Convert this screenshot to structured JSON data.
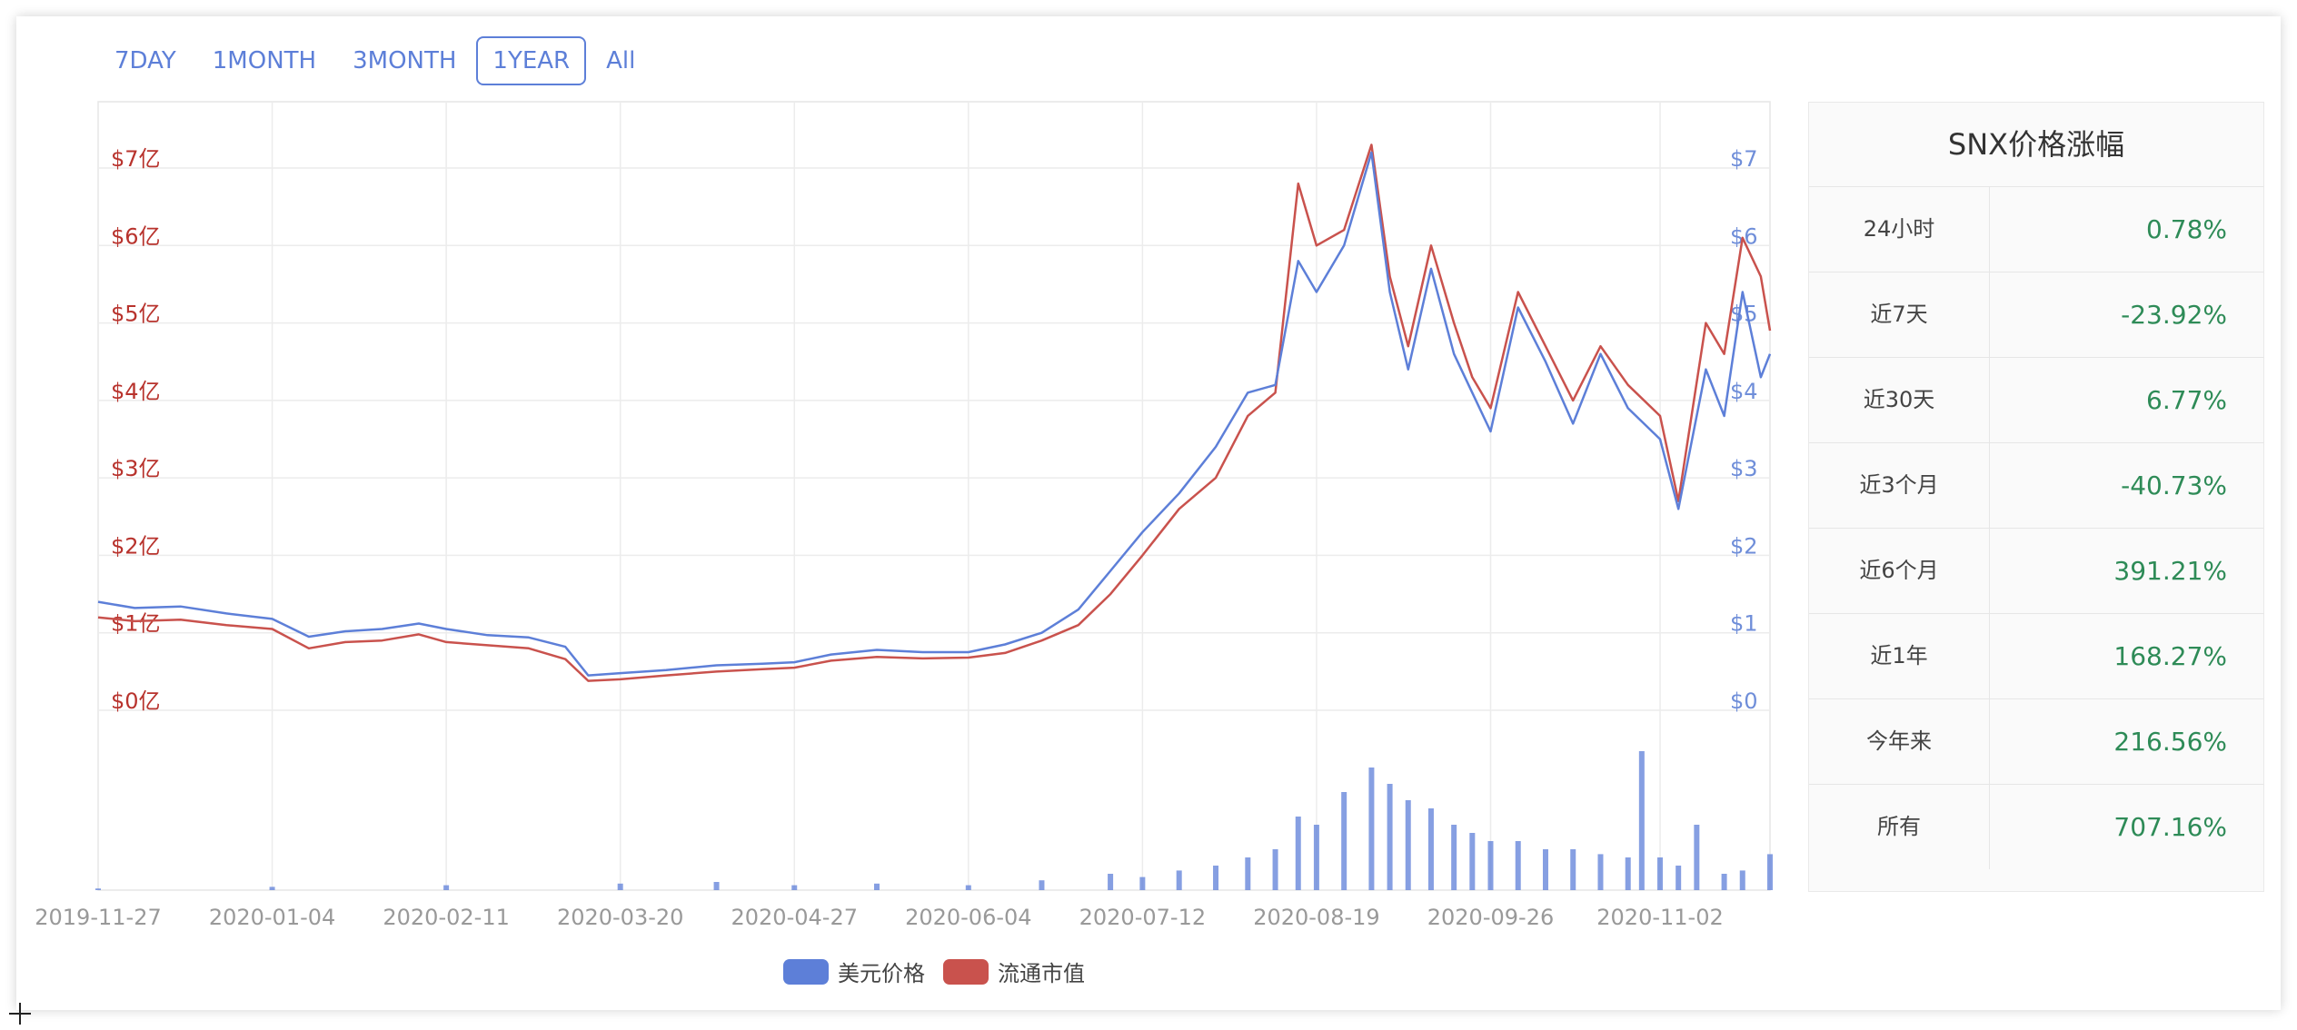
{
  "range_buttons": [
    {
      "label": "7DAY",
      "active": false
    },
    {
      "label": "1MONTH",
      "active": false
    },
    {
      "label": "3MONTH",
      "active": false
    },
    {
      "label": "1YEAR",
      "active": true
    },
    {
      "label": "All",
      "active": false
    }
  ],
  "colors": {
    "price": "#5d7fd8",
    "market_cap": "#c9524d",
    "positive": "#2e8b57",
    "range_accent": "#5d7fd8"
  },
  "legend": [
    {
      "label": "美元价格",
      "color": "#5d7fd8"
    },
    {
      "label": "流通市值",
      "color": "#c9524d"
    }
  ],
  "change_panel": {
    "title": "SNX价格涨幅",
    "rows": [
      {
        "label": "24小时",
        "value": "0.78%"
      },
      {
        "label": "近7天",
        "value": "-23.92%"
      },
      {
        "label": "近30天",
        "value": "6.77%"
      },
      {
        "label": "近3个月",
        "value": "-40.73%"
      },
      {
        "label": "近6个月",
        "value": "391.21%"
      },
      {
        "label": "近1年",
        "value": "168.27%"
      },
      {
        "label": "今年来",
        "value": "216.56%"
      },
      {
        "label": "所有",
        "value": "707.16%"
      }
    ]
  },
  "chart_data": {
    "type": "line",
    "left_axis": {
      "ticks": [
        "$0亿",
        "$1亿",
        "$2亿",
        "$3亿",
        "$4亿",
        "$5亿",
        "$6亿",
        "$7亿"
      ],
      "range": [
        0,
        7
      ],
      "unit": "亿美元"
    },
    "right_axis": {
      "ticks": [
        "$0",
        "$1",
        "$2",
        "$3",
        "$4",
        "$5",
        "$6",
        "$7"
      ],
      "range": [
        0,
        7
      ],
      "unit": "USD"
    },
    "x_ticks": [
      "2019-11-27",
      "2020-01-04",
      "2020-02-11",
      "2020-03-20",
      "2020-04-27",
      "2020-06-04",
      "2020-07-12",
      "2020-08-19",
      "2020-09-26",
      "2020-11-02"
    ],
    "x_range": [
      "2019-11-27",
      "2020-11-26"
    ],
    "grid": true,
    "legend_position": "bottom-center",
    "series": [
      {
        "name": "美元价格",
        "axis": "right",
        "points": [
          [
            "2019-11-27",
            1.4
          ],
          [
            "2019-12-05",
            1.32
          ],
          [
            "2019-12-15",
            1.34
          ],
          [
            "2019-12-25",
            1.25
          ],
          [
            "2020-01-04",
            1.18
          ],
          [
            "2020-01-12",
            0.95
          ],
          [
            "2020-01-20",
            1.02
          ],
          [
            "2020-01-28",
            1.05
          ],
          [
            "2020-02-05",
            1.12
          ],
          [
            "2020-02-11",
            1.05
          ],
          [
            "2020-02-20",
            0.97
          ],
          [
            "2020-02-29",
            0.94
          ],
          [
            "2020-03-08",
            0.82
          ],
          [
            "2020-03-13",
            0.45
          ],
          [
            "2020-03-20",
            0.48
          ],
          [
            "2020-03-30",
            0.52
          ],
          [
            "2020-04-10",
            0.58
          ],
          [
            "2020-04-20",
            0.6
          ],
          [
            "2020-04-27",
            0.62
          ],
          [
            "2020-05-05",
            0.72
          ],
          [
            "2020-05-15",
            0.78
          ],
          [
            "2020-05-25",
            0.75
          ],
          [
            "2020-06-04",
            0.75
          ],
          [
            "2020-06-12",
            0.85
          ],
          [
            "2020-06-20",
            1.0
          ],
          [
            "2020-06-28",
            1.3
          ],
          [
            "2020-07-05",
            1.8
          ],
          [
            "2020-07-12",
            2.3
          ],
          [
            "2020-07-20",
            2.8
          ],
          [
            "2020-07-28",
            3.4
          ],
          [
            "2020-08-04",
            4.1
          ],
          [
            "2020-08-10",
            4.2
          ],
          [
            "2020-08-15",
            5.8
          ],
          [
            "2020-08-19",
            5.4
          ],
          [
            "2020-08-25",
            6.0
          ],
          [
            "2020-08-31",
            7.2
          ],
          [
            "2020-09-04",
            5.4
          ],
          [
            "2020-09-08",
            4.4
          ],
          [
            "2020-09-13",
            5.7
          ],
          [
            "2020-09-18",
            4.6
          ],
          [
            "2020-09-22",
            4.1
          ],
          [
            "2020-09-26",
            3.6
          ],
          [
            "2020-10-02",
            5.2
          ],
          [
            "2020-10-08",
            4.5
          ],
          [
            "2020-10-14",
            3.7
          ],
          [
            "2020-10-20",
            4.6
          ],
          [
            "2020-10-26",
            3.9
          ],
          [
            "2020-11-02",
            3.5
          ],
          [
            "2020-11-06",
            2.6
          ],
          [
            "2020-11-12",
            4.4
          ],
          [
            "2020-11-16",
            3.8
          ],
          [
            "2020-11-20",
            5.4
          ],
          [
            "2020-11-24",
            4.3
          ],
          [
            "2020-11-26",
            4.6
          ]
        ]
      },
      {
        "name": "流通市值",
        "axis": "left",
        "points": [
          [
            "2019-11-27",
            1.2
          ],
          [
            "2019-12-05",
            1.15
          ],
          [
            "2019-12-15",
            1.17
          ],
          [
            "2019-12-25",
            1.1
          ],
          [
            "2020-01-04",
            1.05
          ],
          [
            "2020-01-12",
            0.8
          ],
          [
            "2020-01-20",
            0.88
          ],
          [
            "2020-01-28",
            0.9
          ],
          [
            "2020-02-05",
            0.98
          ],
          [
            "2020-02-11",
            0.88
          ],
          [
            "2020-02-20",
            0.84
          ],
          [
            "2020-02-29",
            0.8
          ],
          [
            "2020-03-08",
            0.66
          ],
          [
            "2020-03-13",
            0.38
          ],
          [
            "2020-03-20",
            0.4
          ],
          [
            "2020-03-30",
            0.45
          ],
          [
            "2020-04-10",
            0.5
          ],
          [
            "2020-04-20",
            0.53
          ],
          [
            "2020-04-27",
            0.55
          ],
          [
            "2020-05-05",
            0.64
          ],
          [
            "2020-05-15",
            0.69
          ],
          [
            "2020-05-25",
            0.67
          ],
          [
            "2020-06-04",
            0.68
          ],
          [
            "2020-06-12",
            0.74
          ],
          [
            "2020-06-20",
            0.9
          ],
          [
            "2020-06-28",
            1.1
          ],
          [
            "2020-07-05",
            1.5
          ],
          [
            "2020-07-12",
            2.0
          ],
          [
            "2020-07-20",
            2.6
          ],
          [
            "2020-07-28",
            3.0
          ],
          [
            "2020-08-04",
            3.8
          ],
          [
            "2020-08-10",
            4.1
          ],
          [
            "2020-08-15",
            6.8
          ],
          [
            "2020-08-19",
            6.0
          ],
          [
            "2020-08-25",
            6.2
          ],
          [
            "2020-08-31",
            7.3
          ],
          [
            "2020-09-04",
            5.6
          ],
          [
            "2020-09-08",
            4.7
          ],
          [
            "2020-09-13",
            6.0
          ],
          [
            "2020-09-18",
            5.0
          ],
          [
            "2020-09-22",
            4.3
          ],
          [
            "2020-09-26",
            3.9
          ],
          [
            "2020-10-02",
            5.4
          ],
          [
            "2020-10-08",
            4.7
          ],
          [
            "2020-10-14",
            4.0
          ],
          [
            "2020-10-20",
            4.7
          ],
          [
            "2020-10-26",
            4.2
          ],
          [
            "2020-11-02",
            3.8
          ],
          [
            "2020-11-06",
            2.7
          ],
          [
            "2020-11-12",
            5.0
          ],
          [
            "2020-11-16",
            4.6
          ],
          [
            "2020-11-20",
            6.1
          ],
          [
            "2020-11-24",
            5.6
          ],
          [
            "2020-11-26",
            4.9
          ]
        ]
      }
    ],
    "volume_bars": {
      "axis": "none",
      "note_range_start": "2019-11-27",
      "points": [
        [
          "2019-11-27",
          0.01
        ],
        [
          "2020-01-04",
          0.02
        ],
        [
          "2020-02-11",
          0.03
        ],
        [
          "2020-03-20",
          0.04
        ],
        [
          "2020-04-10",
          0.05
        ],
        [
          "2020-04-27",
          0.03
        ],
        [
          "2020-05-15",
          0.04
        ],
        [
          "2020-06-04",
          0.03
        ],
        [
          "2020-06-20",
          0.06
        ],
        [
          "2020-07-05",
          0.1
        ],
        [
          "2020-07-12",
          0.08
        ],
        [
          "2020-07-20",
          0.12
        ],
        [
          "2020-07-28",
          0.15
        ],
        [
          "2020-08-04",
          0.2
        ],
        [
          "2020-08-10",
          0.25
        ],
        [
          "2020-08-15",
          0.45
        ],
        [
          "2020-08-19",
          0.4
        ],
        [
          "2020-08-25",
          0.6
        ],
        [
          "2020-08-31",
          0.75
        ],
        [
          "2020-09-04",
          0.65
        ],
        [
          "2020-09-08",
          0.55
        ],
        [
          "2020-09-13",
          0.5
        ],
        [
          "2020-09-18",
          0.4
        ],
        [
          "2020-09-22",
          0.35
        ],
        [
          "2020-09-26",
          0.3
        ],
        [
          "2020-10-02",
          0.3
        ],
        [
          "2020-10-08",
          0.25
        ],
        [
          "2020-10-14",
          0.25
        ],
        [
          "2020-10-20",
          0.22
        ],
        [
          "2020-10-26",
          0.2
        ],
        [
          "2020-10-29",
          0.85
        ],
        [
          "2020-11-02",
          0.2
        ],
        [
          "2020-11-06",
          0.15
        ],
        [
          "2020-11-10",
          0.4
        ],
        [
          "2020-11-16",
          0.1
        ],
        [
          "2020-11-20",
          0.12
        ],
        [
          "2020-11-26",
          0.22
        ]
      ]
    }
  }
}
